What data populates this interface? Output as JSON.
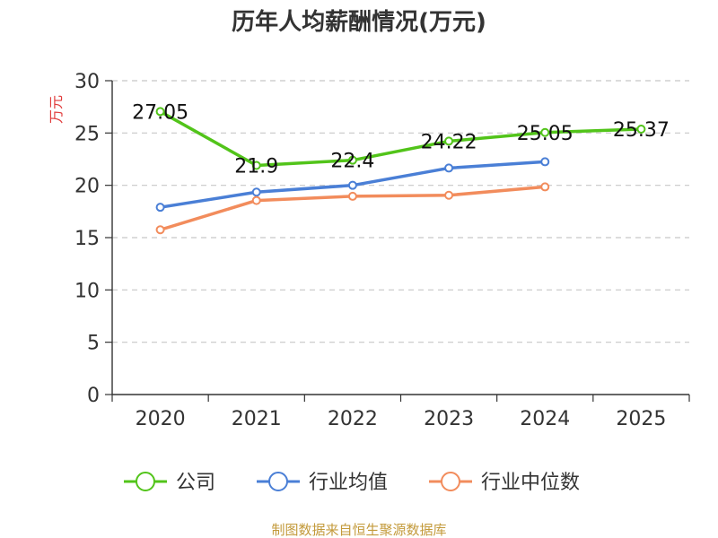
{
  "chart_data": {
    "type": "line",
    "title": "历年人均薪酬情况(万元)",
    "xlabel": "",
    "ylabel": "万元",
    "categories": [
      "2020",
      "2021",
      "2022",
      "2023",
      "2024",
      "2025"
    ],
    "ylim": [
      0,
      30
    ],
    "yticks": [
      0,
      5,
      10,
      15,
      20,
      25,
      30
    ],
    "grid": true,
    "legend_position": "bottom",
    "series": [
      {
        "name": "公司",
        "color": "#52c41a",
        "values": [
          27.05,
          21.9,
          22.4,
          24.22,
          25.05,
          25.37
        ],
        "labels": [
          "27.05",
          "21.9",
          "22.4",
          "24.22",
          "25.05",
          "25.37"
        ]
      },
      {
        "name": "行业均值",
        "color": "#4a7fd6",
        "values": [
          17.9,
          19.35,
          20.0,
          21.65,
          22.25,
          null
        ]
      },
      {
        "name": "行业中位数",
        "color": "#f28c5c",
        "values": [
          15.75,
          18.55,
          18.95,
          19.05,
          19.85,
          null
        ]
      }
    ],
    "source": "制图数据来自恒生聚源数据库"
  }
}
